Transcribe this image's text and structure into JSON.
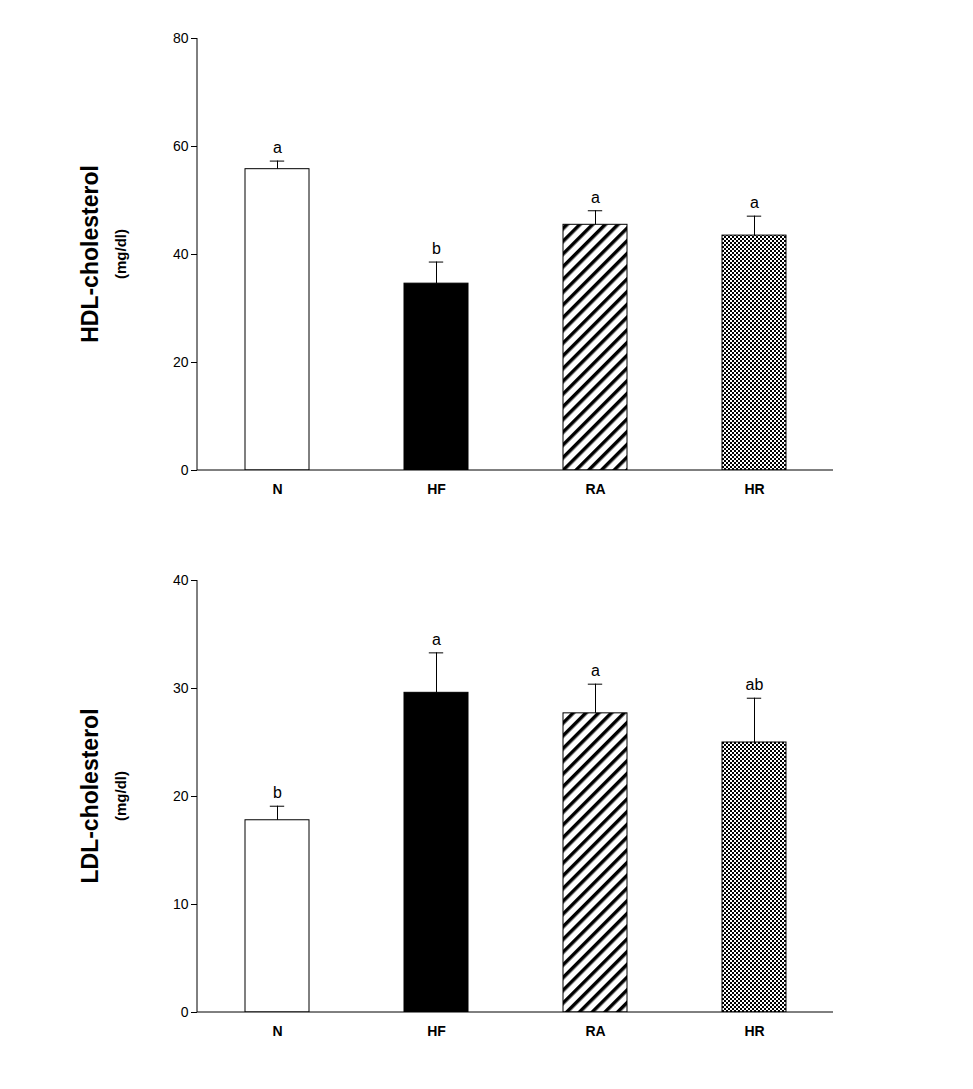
{
  "chart_data": [
    {
      "type": "bar",
      "y_label": "HDL-cholesterol",
      "y_label_unit": "(mg/dl)",
      "categories": [
        "N",
        "HF",
        "RA",
        "HR"
      ],
      "values": [
        55.8,
        34.6,
        45.5,
        43.5
      ],
      "errors": [
        1.5,
        4.0,
        2.6,
        3.6
      ],
      "annotations": [
        "a",
        "b",
        "a",
        "a"
      ],
      "colors": [
        "#ffffff",
        "#000000",
        "#000000",
        "#000000"
      ],
      "ylim": [
        0,
        80
      ],
      "yticks": [
        0,
        20,
        40,
        60,
        80
      ],
      "grid": false
    },
    {
      "type": "bar",
      "y_label": "LDL-cholesterol",
      "y_label_unit": "(mg/dl)",
      "categories": [
        "N",
        "HF",
        "RA",
        "HR"
      ],
      "values": [
        17.8,
        29.6,
        27.7,
        25.0
      ],
      "errors": [
        1.3,
        3.7,
        2.7,
        4.1
      ],
      "annotations": [
        "b",
        "a",
        "a",
        "ab"
      ],
      "colors": [
        "#ffffff",
        "#000000",
        "#000000",
        "#000000"
      ],
      "ylim": [
        0,
        40
      ],
      "yticks": [
        0,
        10,
        20,
        30,
        40
      ],
      "grid": false
    }
  ]
}
